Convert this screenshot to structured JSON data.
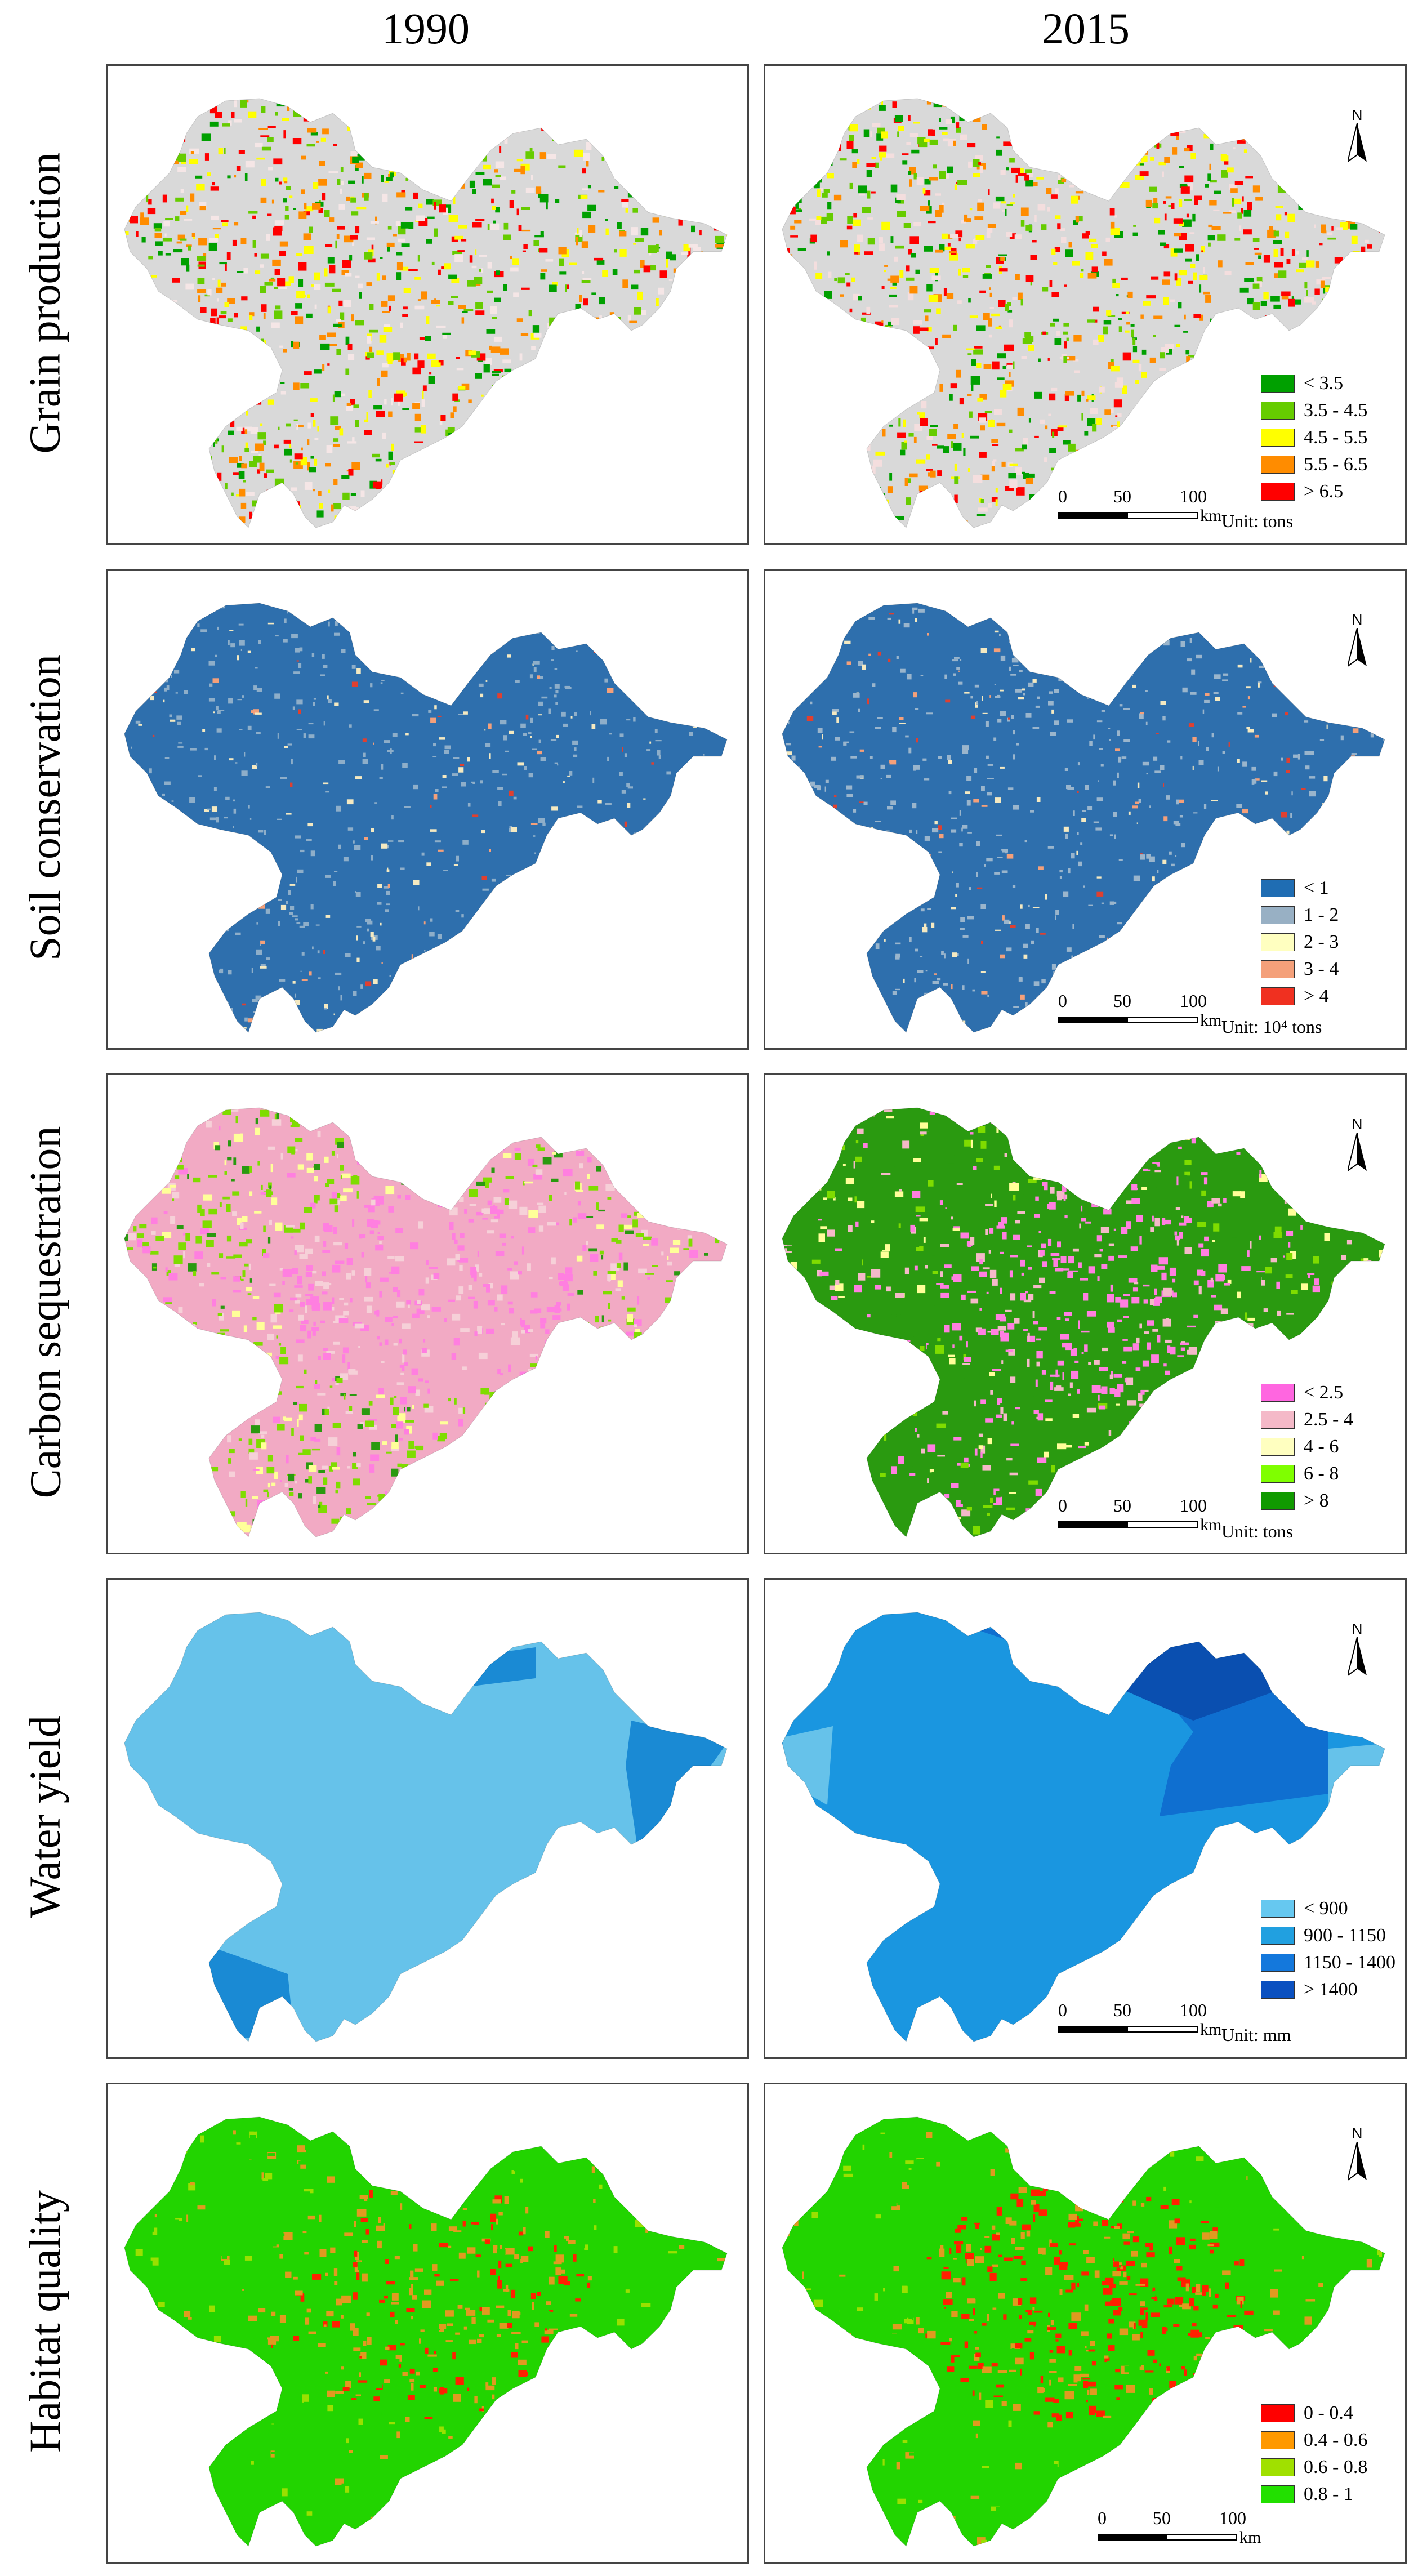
{
  "columns": [
    "1990",
    "2015"
  ],
  "north_label": "N",
  "scale": {
    "labels": [
      "0",
      "50",
      "100"
    ],
    "unit": "km"
  },
  "rows": [
    {
      "name": "Grain production",
      "map_fills_1990": [
        "#d9d9d9",
        "#f5e6e6",
        "#ffff00",
        "#00a000",
        "#ff0000",
        "#ff8c00",
        "#66cc00"
      ],
      "map_fills_2015": [
        "#d9d9d9",
        "#f4dede",
        "#ffff00",
        "#00a000",
        "#ff0000",
        "#ff8c00",
        "#66cc00"
      ],
      "legend": [
        {
          "label": "< 3.5",
          "color": "#00a000"
        },
        {
          "label": "3.5 - 4.5",
          "color": "#66cc00"
        },
        {
          "label": "4.5 - 5.5",
          "color": "#ffff00"
        },
        {
          "label": "5.5 - 6.5",
          "color": "#ff8c00"
        },
        {
          "label": "> 6.5",
          "color": "#ff0000"
        }
      ],
      "unit": "Unit: tons"
    },
    {
      "name": "Soil conservation",
      "map_fills_1990": [
        "#2e6fad",
        "#8eaec9",
        "#f4e9c1",
        "#f4a07a",
        "#e04030"
      ],
      "map_fills_2015": [
        "#2e6fad",
        "#9ab5cc",
        "#f4e9c1",
        "#f4a07a",
        "#e04030"
      ],
      "legend": [
        {
          "label": "< 1",
          "color": "#1f6db3"
        },
        {
          "label": "1 - 2",
          "color": "#98b0c4"
        },
        {
          "label": "2 - 3",
          "color": "#ffffc0"
        },
        {
          "label": "3 - 4",
          "color": "#f4a07a"
        },
        {
          "label": "> 4",
          "color": "#f03020"
        }
      ],
      "unit": "Unit:  10⁴ tons"
    },
    {
      "name": "Carbon sequestration",
      "map_fills_1990": [
        "#f2aac4",
        "#7fdc00",
        "#f6d0d8",
        "#ffff99",
        "#2a9a10",
        "#ff7fe0"
      ],
      "map_fills_2015": [
        "#2a9a10",
        "#ff7fe0",
        "#f4b9c8",
        "#ffff99",
        "#7fdc00"
      ],
      "legend": [
        {
          "label": "< 2.5",
          "color": "#ff66e0"
        },
        {
          "label": "2.5 - 4",
          "color": "#f4b9c8"
        },
        {
          "label": "4 - 6",
          "color": "#ffffc0"
        },
        {
          "label": "6 - 8",
          "color": "#7fff00"
        },
        {
          "label": "> 8",
          "color": "#109a00"
        }
      ],
      "unit": "Unit:  tons"
    },
    {
      "name": "Water yield",
      "map_fills_1990": [
        "#66c2ea",
        "#1a8ad4"
      ],
      "map_fills_2015": [
        "#1a96e0",
        "#0f6fd0",
        "#0a4fb0",
        "#66c2ea"
      ],
      "legend": [
        {
          "label": "< 900",
          "color": "#66c8f0"
        },
        {
          "label": "900 - 1150",
          "color": "#21a0e0"
        },
        {
          "label": "1150 - 1400",
          "color": "#1478dc"
        },
        {
          "label": "> 1400",
          "color": "#0a50c0"
        }
      ],
      "unit": "Unit: mm"
    },
    {
      "name": "Habitat quality",
      "map_fills_1990": [
        "#22d400",
        "#e09a20",
        "#ff2000",
        "#9ae000"
      ],
      "map_fills_2015": [
        "#22d400",
        "#e09a20",
        "#ff2000",
        "#9ae000"
      ],
      "legend": [
        {
          "label": "0 - 0.4",
          "color": "#ff0000"
        },
        {
          "label": "0.4 - 0.6",
          "color": "#ff9900"
        },
        {
          "label": "0.6 - 0.8",
          "color": "#a0e000"
        },
        {
          "label": "0.8 - 1",
          "color": "#22e000"
        }
      ],
      "unit": ""
    }
  ]
}
